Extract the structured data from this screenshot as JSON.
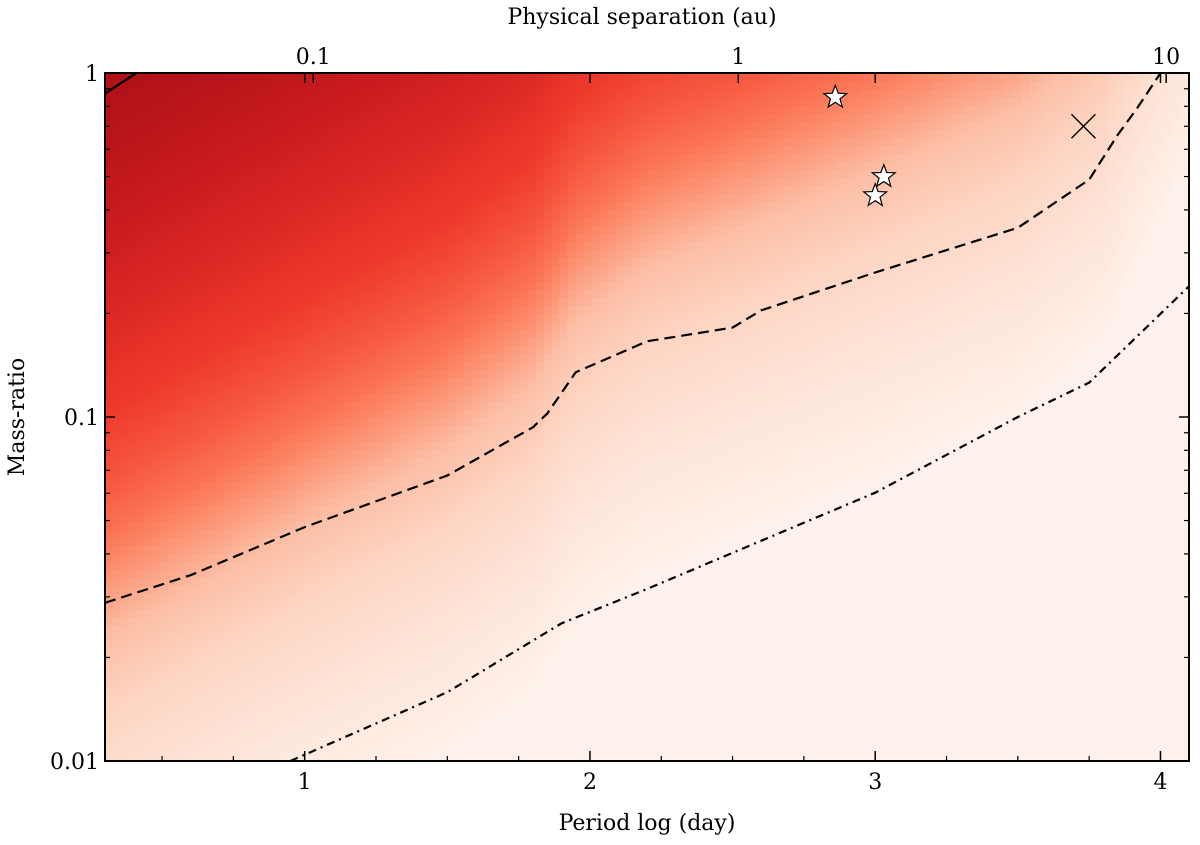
{
  "chart_data": {
    "type": "heatmap",
    "title": "",
    "xlabel": "Period log (day)",
    "ylabel": "Mass-ratio",
    "x2label": "Physical separation (au)",
    "xlim": [
      0.3,
      4.1
    ],
    "ylim_log10": [
      -2,
      0
    ],
    "x_ticks": [
      1,
      2,
      3,
      4
    ],
    "x_tick_labels": [
      "1",
      "2",
      "3",
      "4"
    ],
    "y_ticks": [
      0.01,
      0.1,
      1
    ],
    "y_tick_labels": [
      "0.01",
      "0.1",
      "1"
    ],
    "x2_ticks_au": [
      0.1,
      1,
      10
    ],
    "x2_tick_labels": [
      "0.1",
      "1",
      "10"
    ],
    "x2_tick_positions_logP": [
      1.03,
      2.52,
      4.02
    ],
    "colormap": [
      "#fff1eb",
      "#fee4d7",
      "#fdd3c0",
      "#fcbea5",
      "#fca588",
      "#fc8c6c",
      "#fb7353",
      "#f6573e",
      "#ee3a2c",
      "#de2a25",
      "#cc1d1f",
      "#b8141a",
      "#a10f14"
    ],
    "colormap_stops": [
      -1.0,
      -0.6,
      -0.3,
      -0.1,
      0.0,
      0.1,
      0.2,
      0.35,
      0.55,
      0.8,
      1.05,
      1.35,
      1.75
    ],
    "sensitivity_reference": {
      "logP": [
        0.3,
        1.0,
        1.5,
        1.8,
        1.95,
        2.2,
        2.6,
        3.0,
        3.5,
        3.8,
        4.0
      ],
      "log10_q": [
        -1.54,
        -1.32,
        -1.17,
        -1.03,
        -0.87,
        -0.75,
        -0.67,
        -0.59,
        -0.48,
        -0.32,
        0.0
      ]
    },
    "contours": [
      {
        "name": "solid",
        "style": "solid",
        "logP": [
          0.3,
          0.41
        ],
        "log10_q": [
          -0.06,
          0.0
        ]
      },
      {
        "name": "dashed",
        "style": "dashed",
        "logP": [
          0.3,
          0.6,
          1.0,
          1.5,
          1.8,
          1.85,
          1.95,
          2.2,
          2.5,
          2.6,
          3.0,
          3.5,
          3.75,
          3.85,
          3.92,
          4.0
        ],
        "log10_q": [
          -1.54,
          -1.46,
          -1.32,
          -1.17,
          -1.03,
          -0.99,
          -0.87,
          -0.78,
          -0.74,
          -0.69,
          -0.58,
          -0.45,
          -0.31,
          -0.18,
          -0.1,
          0.0
        ]
      },
      {
        "name": "dash-dot",
        "style": "dashdot",
        "logP": [
          0.95,
          1.5,
          1.9,
          2.2,
          2.6,
          3.0,
          3.5,
          3.75,
          4.1
        ],
        "log10_q": [
          -2.0,
          -1.8,
          -1.6,
          -1.5,
          -1.36,
          -1.22,
          -1.0,
          -0.9,
          -0.62
        ]
      }
    ],
    "markers": [
      {
        "symbol": "star",
        "logP": 2.86,
        "q": 0.85
      },
      {
        "symbol": "star",
        "logP": 3.03,
        "q": 0.5
      },
      {
        "symbol": "star",
        "logP": 3.0,
        "q": 0.44
      },
      {
        "symbol": "cross",
        "logP": 3.73,
        "q": 0.7
      }
    ]
  }
}
